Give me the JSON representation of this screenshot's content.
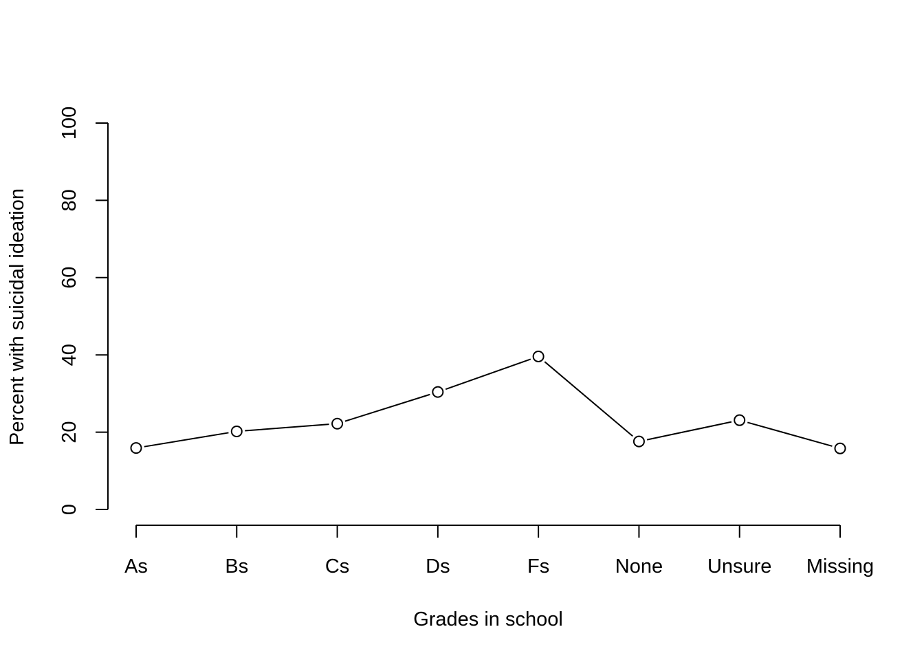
{
  "chart_data": {
    "type": "line",
    "title": "",
    "xlabel": "Grades in school",
    "ylabel": "Percent with suicidal ideation",
    "categories": [
      "As",
      "Bs",
      "Cs",
      "Ds",
      "Fs",
      "None",
      "Unsure",
      "Missing"
    ],
    "values": [
      15.9,
      20.2,
      22.2,
      30.4,
      39.6,
      17.6,
      23.1,
      15.8
    ],
    "ylim": [
      0,
      100
    ],
    "yticks": [
      "0",
      "20",
      "40",
      "60",
      "80",
      "100"
    ],
    "marker": "open-circle",
    "grid": false,
    "legend": "none",
    "colors": {
      "line": "#000000",
      "marker_fill": "#ffffff",
      "background": "#ffffff"
    }
  }
}
